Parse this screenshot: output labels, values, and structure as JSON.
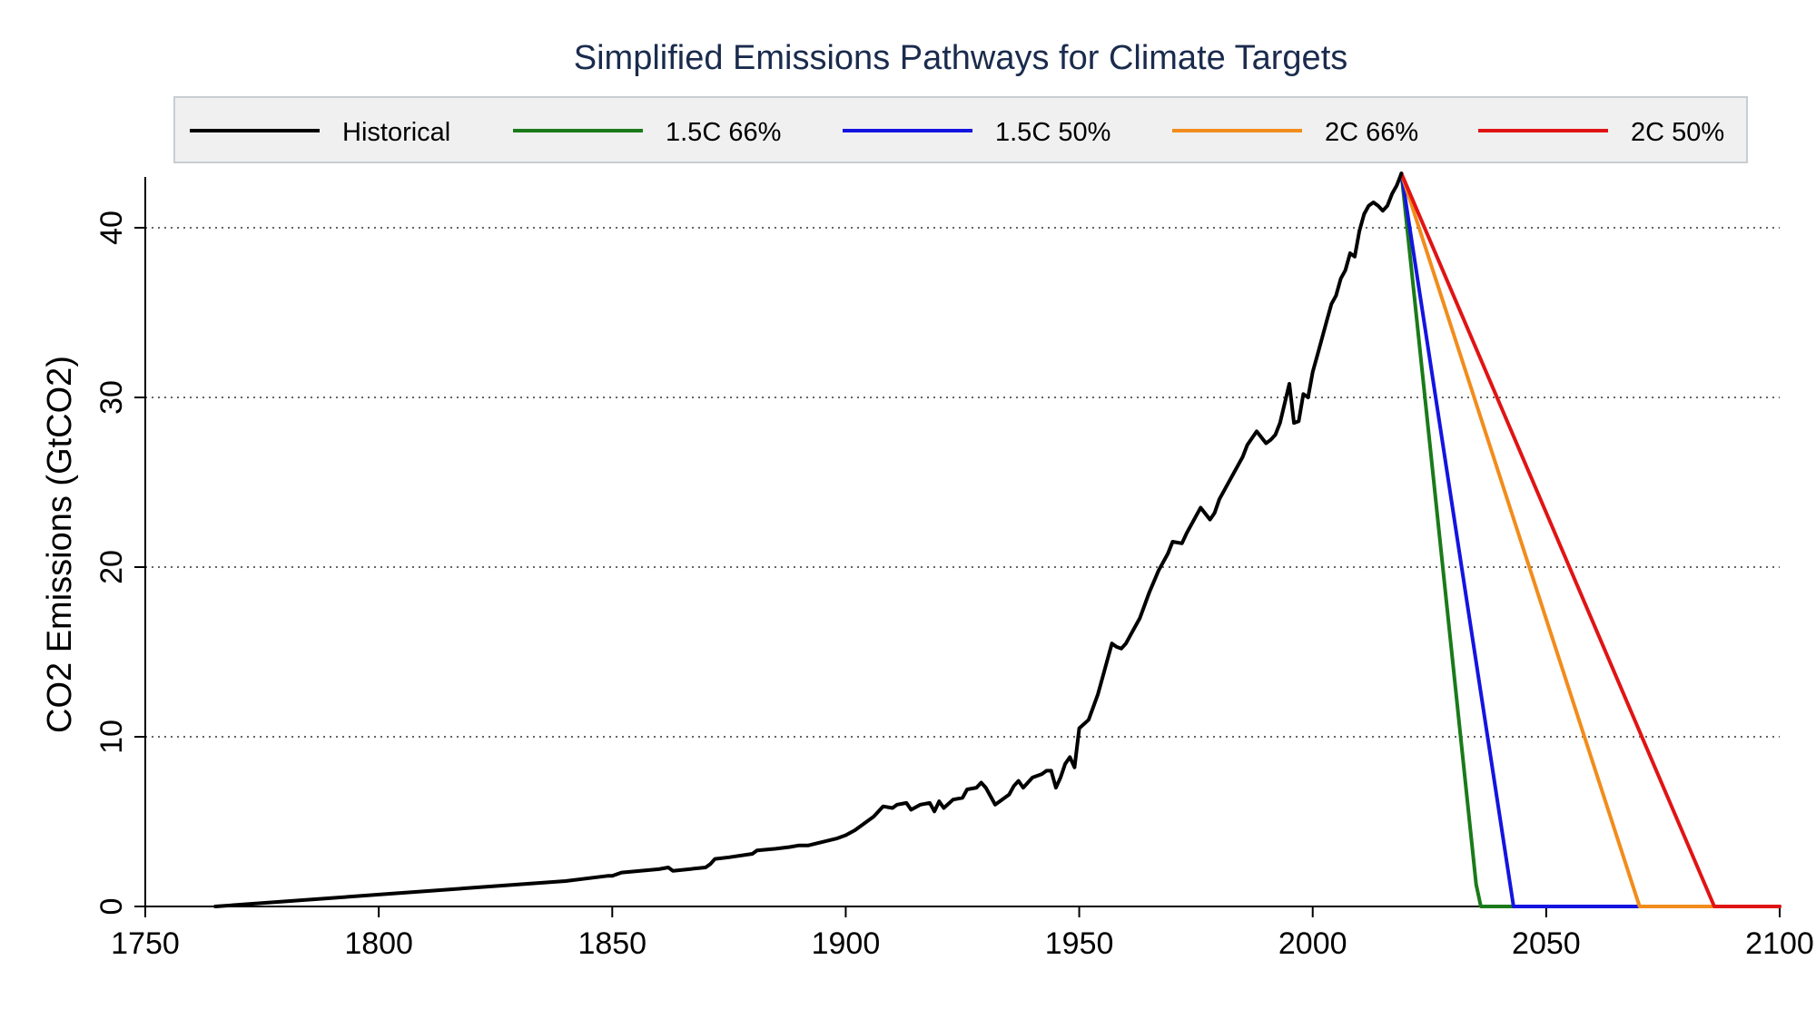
{
  "chart_data": {
    "type": "line",
    "title": "Simplified Emissions Pathways for Climate Targets",
    "xlabel": "",
    "ylabel": "CO2 Emissions (GtCO2)",
    "xlim": [
      1750,
      2100
    ],
    "ylim": [
      0,
      43
    ],
    "xticks": [
      1750,
      1800,
      1850,
      1900,
      1950,
      2000,
      2050,
      2100
    ],
    "yticks": [
      0,
      10,
      20,
      30,
      40
    ],
    "grid": "horizontal-dotted",
    "legend_position": "top",
    "series": [
      {
        "name": "Historical",
        "color": "#000000",
        "x": [
          1765,
          1780,
          1800,
          1820,
          1840,
          1849,
          1850,
          1852,
          1860,
          1862,
          1863,
          1870,
          1871,
          1872,
          1875,
          1880,
          1881,
          1885,
          1888,
          1890,
          1892,
          1895,
          1898,
          1900,
          1902,
          1904,
          1906,
          1908,
          1910,
          1911,
          1913,
          1914,
          1916,
          1918,
          1919,
          1920,
          1921,
          1923,
          1925,
          1926,
          1928,
          1929,
          1930,
          1931,
          1932,
          1933,
          1935,
          1936,
          1937,
          1938,
          1940,
          1942,
          1943,
          1944,
          1945,
          1946,
          1947,
          1948,
          1949,
          1950,
          1952,
          1954,
          1955,
          1956,
          1957,
          1958,
          1959,
          1960,
          1961,
          1963,
          1965,
          1967,
          1969,
          1970,
          1972,
          1973,
          1975,
          1976,
          1978,
          1979,
          1980,
          1981,
          1983,
          1985,
          1986,
          1988,
          1990,
          1991,
          1992,
          1993,
          1995,
          1996,
          1997,
          1998,
          1999,
          2000,
          2001,
          2002,
          2003,
          2004,
          2005,
          2006,
          2007,
          2008,
          2009,
          2010,
          2011,
          2012,
          2013,
          2014,
          2015,
          2016,
          2017,
          2018,
          2019
        ],
        "y": [
          0,
          0.3,
          0.7,
          1.1,
          1.5,
          1.8,
          1.8,
          2.0,
          2.2,
          2.3,
          2.1,
          2.3,
          2.5,
          2.8,
          2.9,
          3.1,
          3.3,
          3.4,
          3.5,
          3.6,
          3.6,
          3.8,
          4.0,
          4.2,
          4.5,
          4.9,
          5.3,
          5.9,
          5.8,
          6.0,
          6.1,
          5.7,
          6.0,
          6.1,
          5.6,
          6.2,
          5.8,
          6.3,
          6.4,
          6.9,
          7.0,
          7.3,
          7.0,
          6.5,
          6.0,
          6.2,
          6.6,
          7.1,
          7.4,
          7.0,
          7.6,
          7.8,
          8.0,
          8.0,
          7.0,
          7.6,
          8.4,
          8.8,
          8.2,
          10.5,
          11.0,
          12.5,
          13.5,
          14.5,
          15.5,
          15.3,
          15.2,
          15.5,
          16.0,
          17.0,
          18.5,
          19.8,
          20.8,
          21.5,
          21.4,
          22.0,
          23.0,
          23.5,
          22.8,
          23.2,
          24.0,
          24.5,
          25.5,
          26.5,
          27.2,
          28.0,
          27.3,
          27.5,
          27.8,
          28.5,
          30.8,
          28.5,
          28.6,
          30.2,
          30.0,
          31.5,
          32.5,
          33.5,
          34.5,
          35.5,
          36.0,
          37.0,
          37.5,
          38.5,
          38.3,
          39.8,
          40.8,
          41.3,
          41.5,
          41.3,
          41.0,
          41.3,
          42.0,
          42.5,
          43.2
        ]
      },
      {
        "name": "1.5C 66%",
        "color": "#1a7a1a",
        "x": [
          2019,
          2035,
          2036,
          2100
        ],
        "y": [
          43.2,
          1.3,
          0,
          0
        ]
      },
      {
        "name": "1.5C 50%",
        "color": "#1414e0",
        "x": [
          2019,
          2043,
          2100
        ],
        "y": [
          43.2,
          0,
          0
        ]
      },
      {
        "name": "2C 66%",
        "color": "#f28c1c",
        "x": [
          2019,
          2070,
          2100
        ],
        "y": [
          43.2,
          0,
          0
        ]
      },
      {
        "name": "2C 50%",
        "color": "#e01414",
        "x": [
          2019,
          2086,
          2100
        ],
        "y": [
          43.2,
          0,
          0
        ]
      }
    ]
  }
}
